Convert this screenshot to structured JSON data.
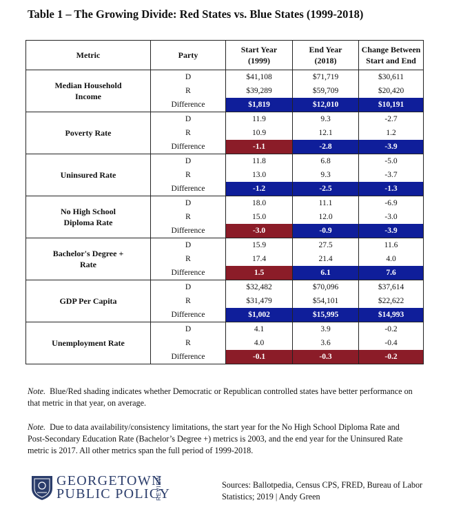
{
  "title": "Table 1 – The Growing Divide: Red States vs. Blue States (1999-2018)",
  "headers": {
    "metric": "Metric",
    "party": "Party",
    "start_l1": "Start Year",
    "start_l2": "(1999)",
    "end_l1": "End Year",
    "end_l2": "(2018)",
    "change_l1": "Change Between",
    "change_l2": "Start and End"
  },
  "labels": {
    "d": "D",
    "r": "R",
    "difference": "Difference"
  },
  "colors": {
    "blue": "#0f1e9a",
    "red": "#8b1c28"
  },
  "metrics": [
    {
      "name_l1": "Median Household",
      "name_l2": "Income",
      "d": [
        "$41,108",
        "$71,719",
        "$30,611"
      ],
      "r": [
        "$39,289",
        "$59,709",
        "$20,420"
      ],
      "diff": [
        "$1,819",
        "$12,010",
        "$10,191"
      ],
      "diff_colors": [
        "blue",
        "blue",
        "blue"
      ]
    },
    {
      "name_l1": "Poverty Rate",
      "name_l2": "",
      "d": [
        "11.9",
        "9.3",
        "-2.7"
      ],
      "r": [
        "10.9",
        "12.1",
        "1.2"
      ],
      "diff": [
        "-1.1",
        "-2.8",
        "-3.9"
      ],
      "diff_colors": [
        "red",
        "blue",
        "blue"
      ]
    },
    {
      "name_l1": "Uninsured Rate",
      "name_l2": "",
      "d": [
        "11.8",
        "6.8",
        "-5.0"
      ],
      "r": [
        "13.0",
        "9.3",
        "-3.7"
      ],
      "diff": [
        "-1.2",
        "-2.5",
        "-1.3"
      ],
      "diff_colors": [
        "blue",
        "blue",
        "blue"
      ]
    },
    {
      "name_l1": "No High School",
      "name_l2": "Diploma Rate",
      "d": [
        "18.0",
        "11.1",
        "-6.9"
      ],
      "r": [
        "15.0",
        "12.0",
        "-3.0"
      ],
      "diff": [
        "-3.0",
        "-0.9",
        "-3.9"
      ],
      "diff_colors": [
        "red",
        "blue",
        "blue"
      ]
    },
    {
      "name_l1": "Bachelor's Degree +",
      "name_l2": "Rate",
      "d": [
        "15.9",
        "27.5",
        "11.6"
      ],
      "r": [
        "17.4",
        "21.4",
        "4.0"
      ],
      "diff": [
        "1.5",
        "6.1",
        "7.6"
      ],
      "diff_colors": [
        "red",
        "blue",
        "blue"
      ]
    },
    {
      "name_l1": "GDP Per Capita",
      "name_l2": "",
      "d": [
        "$32,482",
        "$70,096",
        "$37,614"
      ],
      "r": [
        "$31,479",
        "$54,101",
        "$22,622"
      ],
      "diff": [
        "$1,002",
        "$15,995",
        "$14,993"
      ],
      "diff_colors": [
        "blue",
        "blue",
        "blue"
      ]
    },
    {
      "name_l1": "Unemployment Rate",
      "name_l2": "",
      "d": [
        "4.1",
        "3.9",
        "-0.2"
      ],
      "r": [
        "4.0",
        "3.6",
        "-0.4"
      ],
      "diff": [
        "-0.1",
        "-0.3",
        "-0.2"
      ],
      "diff_colors": [
        "red",
        "red",
        "red"
      ]
    }
  ],
  "note1": {
    "label": "Note.",
    "text": "Blue/Red shading indicates whether Democratic or Republican controlled states have better performance on that metric in that year, on average."
  },
  "note2": {
    "label": "Note.",
    "text": "Due to data availability/consistency limitations, the start year for the No High School Diploma Rate and Post-Secondary Education Rate (Bachelor’s Degree +) metrics is 2003, and the end year for the Uninsured Rate metric is 2017.  All other metrics span the full period of 1999-2018."
  },
  "logo": {
    "line1": "GEORGETOWN",
    "line2": "PUBLIC POLICY",
    "side": "REVIEW",
    "icon": "seal-icon"
  },
  "sources": "Sources: Ballotpedia, Census CPS, FRED, Bureau of Labor Statistics; 2019 | Andy Green"
}
